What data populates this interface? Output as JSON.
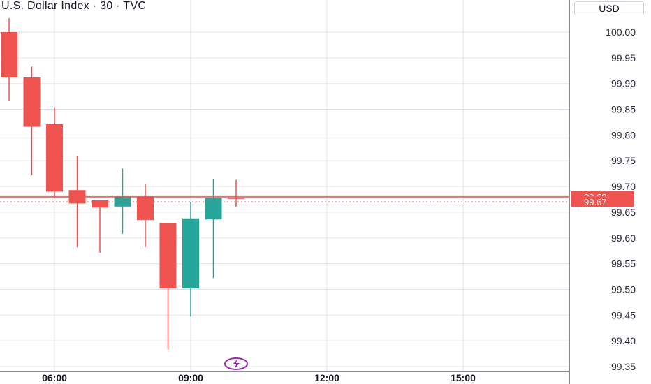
{
  "header": {
    "title": "U.S. Dollar Index · 30 · TVC",
    "currency": "USD"
  },
  "colors": {
    "down": "#ef5350",
    "up": "#26a69a",
    "grid": "#e0e3eb",
    "axis": "#131722",
    "last_price_line": "#ef5350",
    "badge": "#9c27b0"
  },
  "badge_icon": "lightning-icon",
  "chart_data": {
    "type": "candlestick",
    "title": "U.S. Dollar Index · 30 · TVC",
    "y_ticks": [
      "100.00",
      "99.95",
      "99.90",
      "99.85",
      "99.80",
      "99.75",
      "99.70",
      "99.65",
      "99.60",
      "99.55",
      "99.50",
      "99.45",
      "99.40",
      "99.35"
    ],
    "ylim": [
      99.35,
      100.0
    ],
    "x_ticks": [
      "06:00",
      "09:00",
      "12:00",
      "15:00"
    ],
    "candle_times": [
      "05:00",
      "05:30",
      "06:00",
      "06:30",
      "07:00",
      "07:30",
      "08:00",
      "08:30",
      "09:00",
      "09:30",
      "10:00"
    ],
    "candles": [
      {
        "time": "05:00",
        "open": 100.0,
        "high": 100.027,
        "low": 99.867,
        "close": 99.912
      },
      {
        "time": "05:30",
        "open": 99.912,
        "high": 99.933,
        "low": 99.722,
        "close": 99.816
      },
      {
        "time": "06:00",
        "open": 99.821,
        "high": 99.854,
        "low": 99.677,
        "close": 99.69
      },
      {
        "time": "06:30",
        "open": 99.693,
        "high": 99.759,
        "low": 99.582,
        "close": 99.667
      },
      {
        "time": "07:00",
        "open": 99.673,
        "high": 99.673,
        "low": 99.571,
        "close": 99.659
      },
      {
        "time": "07:30",
        "open": 99.661,
        "high": 99.735,
        "low": 99.608,
        "close": 99.681
      },
      {
        "time": "08:00",
        "open": 99.681,
        "high": 99.704,
        "low": 99.582,
        "close": 99.635
      },
      {
        "time": "08:30",
        "open": 99.629,
        "high": 99.629,
        "low": 99.383,
        "close": 99.502
      },
      {
        "time": "09:00",
        "open": 99.502,
        "high": 99.669,
        "low": 99.447,
        "close": 99.638
      },
      {
        "time": "09:30",
        "open": 99.636,
        "high": 99.715,
        "low": 99.522,
        "close": 99.678
      },
      {
        "time": "10:00",
        "open": 99.678,
        "high": 99.713,
        "low": 99.661,
        "close": 99.676
      }
    ],
    "last_price": {
      "value": 99.68,
      "label": "99.68"
    },
    "prev_close": {
      "value": 99.67,
      "label": "99.67"
    },
    "grid": true
  }
}
